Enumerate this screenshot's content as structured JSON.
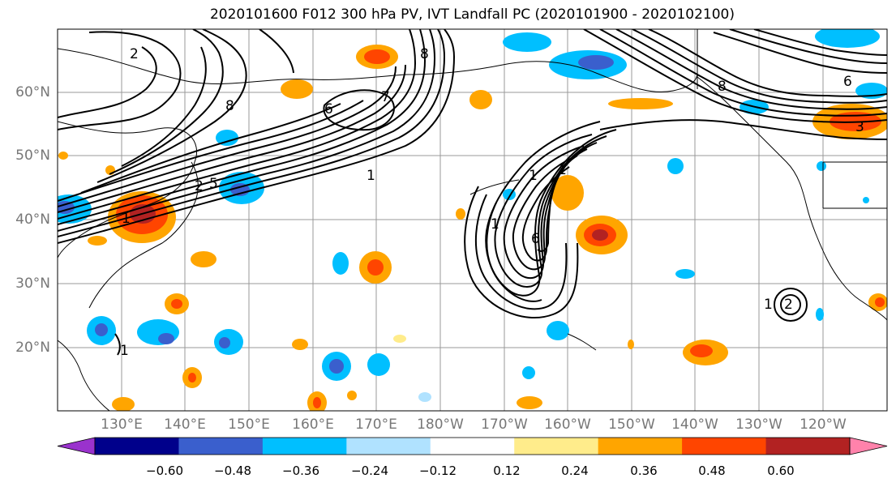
{
  "title": "2020101600 F012 300 hPa PV, IVT Landfall PC (2020101900 - 2020102100)",
  "lat_labels": [
    "60°N",
    "50°N",
    "40°N",
    "30°N",
    "20°N"
  ],
  "lon_labels": [
    "130°E",
    "140°E",
    "150°E",
    "160°E",
    "170°E",
    "180°W",
    "170°W",
    "160°W",
    "150°W",
    "140°W",
    "130°W",
    "120°W"
  ],
  "colorbar": {
    "labels": [
      "−0.60",
      "−0.48",
      "−0.36",
      "−0.24",
      "−0.12",
      "0.12",
      "0.24",
      "0.36",
      "0.48",
      "0.60"
    ],
    "colors": [
      "#9a32cd",
      "#00008b",
      "#3a5fcd",
      "#00bfff",
      "#b0e2ff",
      "#ffffff",
      "#ffec8b",
      "#ffa500",
      "#ff4500",
      "#b22222",
      "#ff82ab"
    ]
  },
  "contour_labels": [
    "2",
    "8",
    "8",
    "6",
    "7",
    "1",
    "2",
    "1",
    "5",
    "1",
    "1",
    "6",
    "1",
    "1",
    "2",
    "8",
    "6",
    "3",
    "1"
  ]
}
